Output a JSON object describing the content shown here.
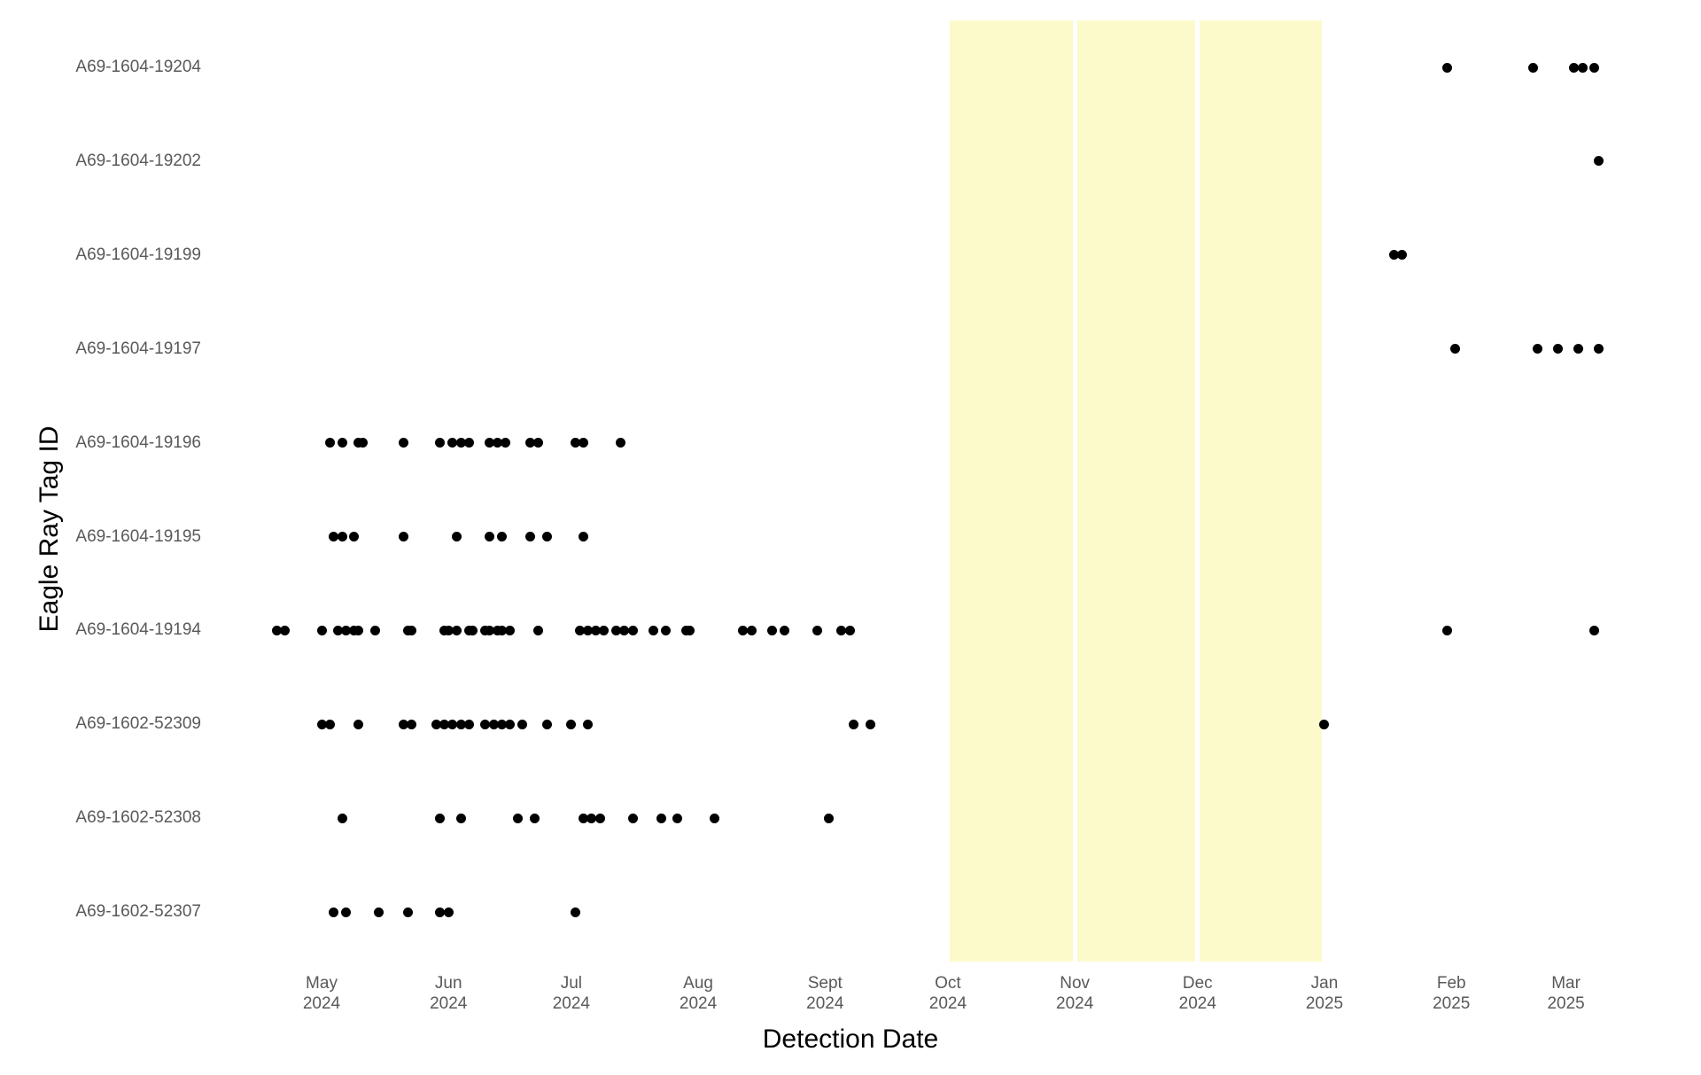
{
  "figure": {
    "x_axis_title": "Detection Date",
    "y_axis_title": "Eagle Ray Tag ID"
  },
  "chart_data": {
    "type": "scatter",
    "title": "",
    "xlabel": "Detection Date",
    "ylabel": "Eagle Ray Tag ID",
    "grid": "off",
    "legend": "none",
    "dot_color": "#000000",
    "tick_label_color": "#595959",
    "highlight_color": "#FCFACB",
    "x_range": [
      "2024-04-10",
      "2025-03-31"
    ],
    "x_ticks": [
      {
        "month": "May",
        "year": "2024",
        "date": "2024-05-01"
      },
      {
        "month": "Jun",
        "year": "2024",
        "date": "2024-06-01"
      },
      {
        "month": "Jul",
        "year": "2024",
        "date": "2024-07-01"
      },
      {
        "month": "Aug",
        "year": "2024",
        "date": "2024-08-01"
      },
      {
        "month": "Sept",
        "year": "2024",
        "date": "2024-09-01"
      },
      {
        "month": "Oct",
        "year": "2024",
        "date": "2024-10-01"
      },
      {
        "month": "Nov",
        "year": "2024",
        "date": "2024-11-01"
      },
      {
        "month": "Dec",
        "year": "2024",
        "date": "2024-12-01"
      },
      {
        "month": "Jan",
        "year": "2025",
        "date": "2025-01-01"
      },
      {
        "month": "Feb",
        "year": "2025",
        "date": "2025-02-01"
      },
      {
        "month": "Mar",
        "year": "2025",
        "date": "2025-03-01"
      }
    ],
    "highlight_bands": [
      {
        "from": "2024-10-01",
        "to": "2024-11-01"
      },
      {
        "from": "2024-11-01",
        "to": "2024-12-01"
      },
      {
        "from": "2024-12-01",
        "to": "2025-01-01"
      }
    ],
    "categories": [
      "A69-1604-19204",
      "A69-1604-19202",
      "A69-1604-19199",
      "A69-1604-19197",
      "A69-1604-19196",
      "A69-1604-19195",
      "A69-1604-19194",
      "A69-1602-52309",
      "A69-1602-52308",
      "A69-1602-52307"
    ],
    "series": [
      {
        "tag": "A69-1604-19204",
        "detections": [
          "2025-01-31",
          "2025-02-21",
          "2025-03-03",
          "2025-03-05",
          "2025-03-08"
        ]
      },
      {
        "tag": "A69-1604-19202",
        "detections": [
          "2025-03-09"
        ]
      },
      {
        "tag": "A69-1604-19199",
        "detections": [
          "2025-01-18",
          "2025-01-20"
        ]
      },
      {
        "tag": "A69-1604-19197",
        "detections": [
          "2025-02-02",
          "2025-02-22",
          "2025-02-27",
          "2025-03-04",
          "2025-03-09"
        ]
      },
      {
        "tag": "A69-1604-19196",
        "detections": [
          "2024-05-03",
          "2024-05-06",
          "2024-05-10",
          "2024-05-11",
          "2024-05-21",
          "2024-05-30",
          "2024-06-02",
          "2024-06-04",
          "2024-06-06",
          "2024-06-11",
          "2024-06-13",
          "2024-06-15",
          "2024-06-21",
          "2024-06-23",
          "2024-07-02",
          "2024-07-04",
          "2024-07-13"
        ]
      },
      {
        "tag": "A69-1604-19195",
        "detections": [
          "2024-05-04",
          "2024-05-06",
          "2024-05-09",
          "2024-05-21",
          "2024-06-03",
          "2024-06-11",
          "2024-06-14",
          "2024-06-21",
          "2024-06-25",
          "2024-07-04"
        ]
      },
      {
        "tag": "A69-1604-19194",
        "detections": [
          "2024-04-20",
          "2024-04-22",
          "2024-05-01",
          "2024-05-05",
          "2024-05-07",
          "2024-05-09",
          "2024-05-10",
          "2024-05-14",
          "2024-05-22",
          "2024-05-23",
          "2024-05-31",
          "2024-06-01",
          "2024-06-03",
          "2024-06-06",
          "2024-06-07",
          "2024-06-10",
          "2024-06-11",
          "2024-06-13",
          "2024-06-14",
          "2024-06-16",
          "2024-06-23",
          "2024-07-03",
          "2024-07-05",
          "2024-07-07",
          "2024-07-09",
          "2024-07-12",
          "2024-07-14",
          "2024-07-16",
          "2024-07-21",
          "2024-07-24",
          "2024-07-29",
          "2024-07-30",
          "2024-08-12",
          "2024-08-14",
          "2024-08-19",
          "2024-08-22",
          "2024-08-30",
          "2024-09-05",
          "2024-09-07",
          "2025-01-31",
          "2025-03-08"
        ]
      },
      {
        "tag": "A69-1602-52309",
        "detections": [
          "2024-05-01",
          "2024-05-03",
          "2024-05-10",
          "2024-05-21",
          "2024-05-23",
          "2024-05-29",
          "2024-05-31",
          "2024-06-02",
          "2024-06-04",
          "2024-06-06",
          "2024-06-10",
          "2024-06-12",
          "2024-06-14",
          "2024-06-16",
          "2024-06-19",
          "2024-06-25",
          "2024-07-01",
          "2024-07-05",
          "2024-09-08",
          "2024-09-12",
          "2025-01-01"
        ]
      },
      {
        "tag": "A69-1602-52308",
        "detections": [
          "2024-05-06",
          "2024-05-30",
          "2024-06-04",
          "2024-06-18",
          "2024-06-22",
          "2024-07-04",
          "2024-07-06",
          "2024-07-08",
          "2024-07-16",
          "2024-07-23",
          "2024-07-27",
          "2024-08-05",
          "2024-09-02"
        ]
      },
      {
        "tag": "A69-1602-52307",
        "detections": [
          "2024-05-04",
          "2024-05-07",
          "2024-05-15",
          "2024-05-22",
          "2024-05-30",
          "2024-06-01",
          "2024-07-02"
        ]
      }
    ]
  }
}
